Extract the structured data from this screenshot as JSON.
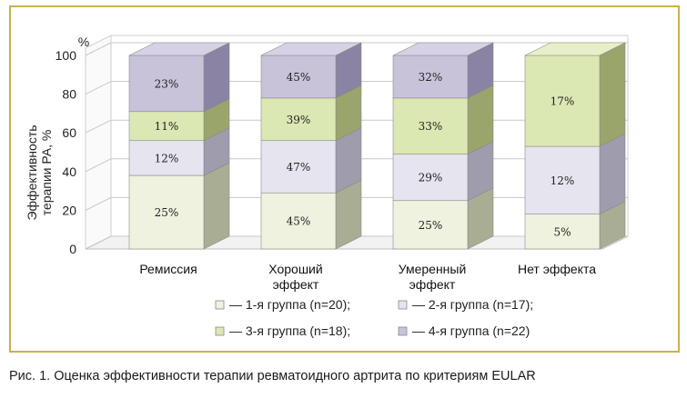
{
  "chart_data": {
    "type": "bar",
    "stacked": true,
    "categories": [
      [
        "Ремиссия"
      ],
      [
        "Хороший",
        "эффект"
      ],
      [
        "Умеренный",
        "эффект"
      ],
      [
        "Нет эффекта"
      ]
    ],
    "unit_label": "%",
    "ylabel": [
      "Эффективность",
      "терапии РА, %"
    ],
    "yticks": [
      "0",
      "20",
      "40",
      "60",
      "80",
      "100"
    ],
    "ylim": [
      0,
      100
    ],
    "series": [
      {
        "name": "— 1-я группа (n=20);",
        "color": "#eef2de",
        "side": "#a9ad93",
        "top": "#f4f6ea"
      },
      {
        "name": "— 2-я группа (n=17);",
        "color": "#e6e4ee",
        "side": "#9f9cae",
        "top": "#efedf4"
      },
      {
        "name": "— 3-я группа (n=18);",
        "color": "#dce8b4",
        "side": "#9aa56c",
        "top": "#e7efc8"
      },
      {
        "name": "— 4-я группа (n=22)",
        "color": "#c9c3da",
        "side": "#8a83a3",
        "top": "#d6d1e4"
      }
    ],
    "stacks": [
      [
        {
          "series": 0,
          "height": 38,
          "label": "25%"
        },
        {
          "series": 1,
          "height": 18,
          "label": "12%"
        },
        {
          "series": 2,
          "height": 15,
          "label": "11%"
        },
        {
          "series": 3,
          "height": 29,
          "label": "23%"
        }
      ],
      [
        {
          "series": 0,
          "height": 29,
          "label": "45%"
        },
        {
          "series": 1,
          "height": 27,
          "label": "47%"
        },
        {
          "series": 2,
          "height": 22,
          "label": "39%"
        },
        {
          "series": 3,
          "height": 22,
          "label": "45%"
        }
      ],
      [
        {
          "series": 0,
          "height": 25,
          "label": "25%"
        },
        {
          "series": 1,
          "height": 24,
          "label": "29%"
        },
        {
          "series": 2,
          "height": 29,
          "label": "33%"
        },
        {
          "series": 3,
          "height": 22,
          "label": "32%"
        }
      ],
      [
        {
          "series": 0,
          "height": 18,
          "label": "5%"
        },
        {
          "series": 1,
          "height": 35,
          "label": "12%"
        },
        {
          "series": 2,
          "height": 47,
          "label": "17%"
        }
      ]
    ]
  },
  "caption": {
    "label": "Рис. 1.",
    "text": "Оценка эффективности терапии ревматоидного артрита по критериям EULAR"
  }
}
